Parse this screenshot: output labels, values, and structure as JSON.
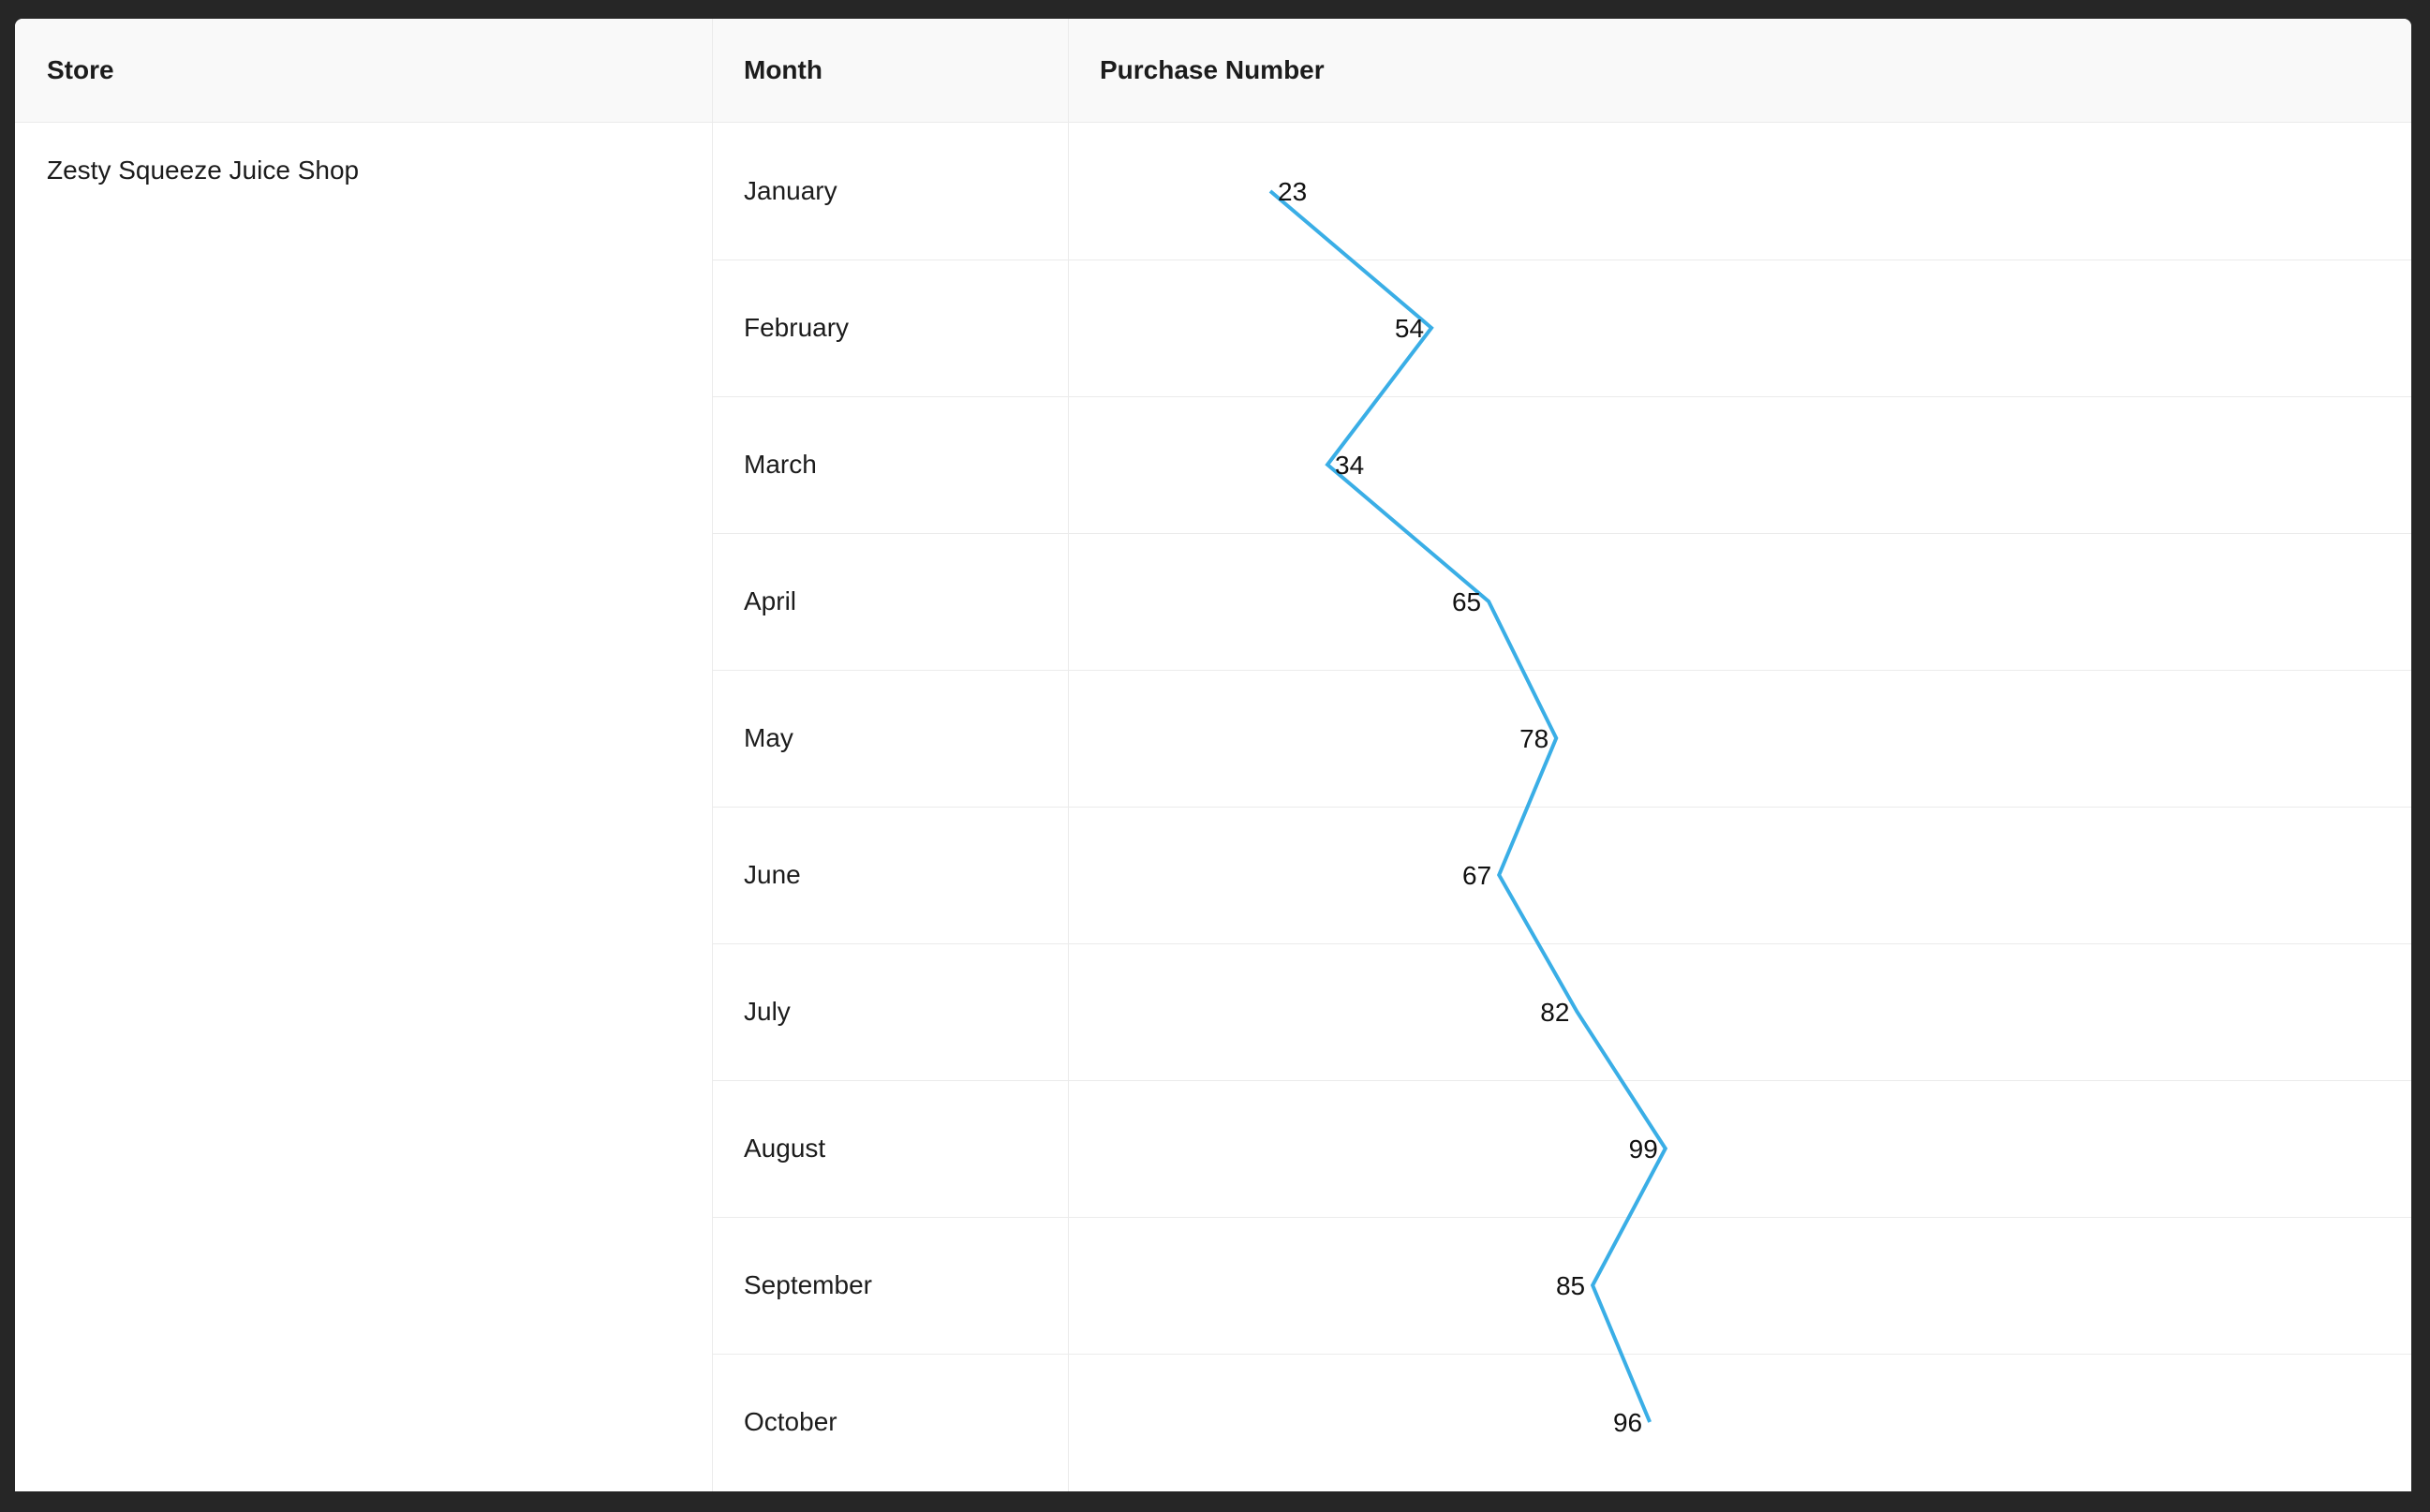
{
  "table": {
    "headers": {
      "store": "Store",
      "month": "Month",
      "purchase": "Purchase Number"
    },
    "store_name": "Zesty Squeeze Juice Shop",
    "months": [
      "January",
      "February",
      "March",
      "April",
      "May",
      "June",
      "July",
      "August",
      "September",
      "October"
    ]
  },
  "chart_data": {
    "type": "line",
    "categories": [
      "January",
      "February",
      "March",
      "April",
      "May",
      "June",
      "July",
      "August",
      "September",
      "October"
    ],
    "values": [
      23,
      54,
      34,
      65,
      78,
      67,
      82,
      99,
      85,
      96
    ],
    "orientation": "vertical-rows",
    "line_color": "#3aaee6",
    "title": "",
    "xlabel": "",
    "ylabel": ""
  }
}
